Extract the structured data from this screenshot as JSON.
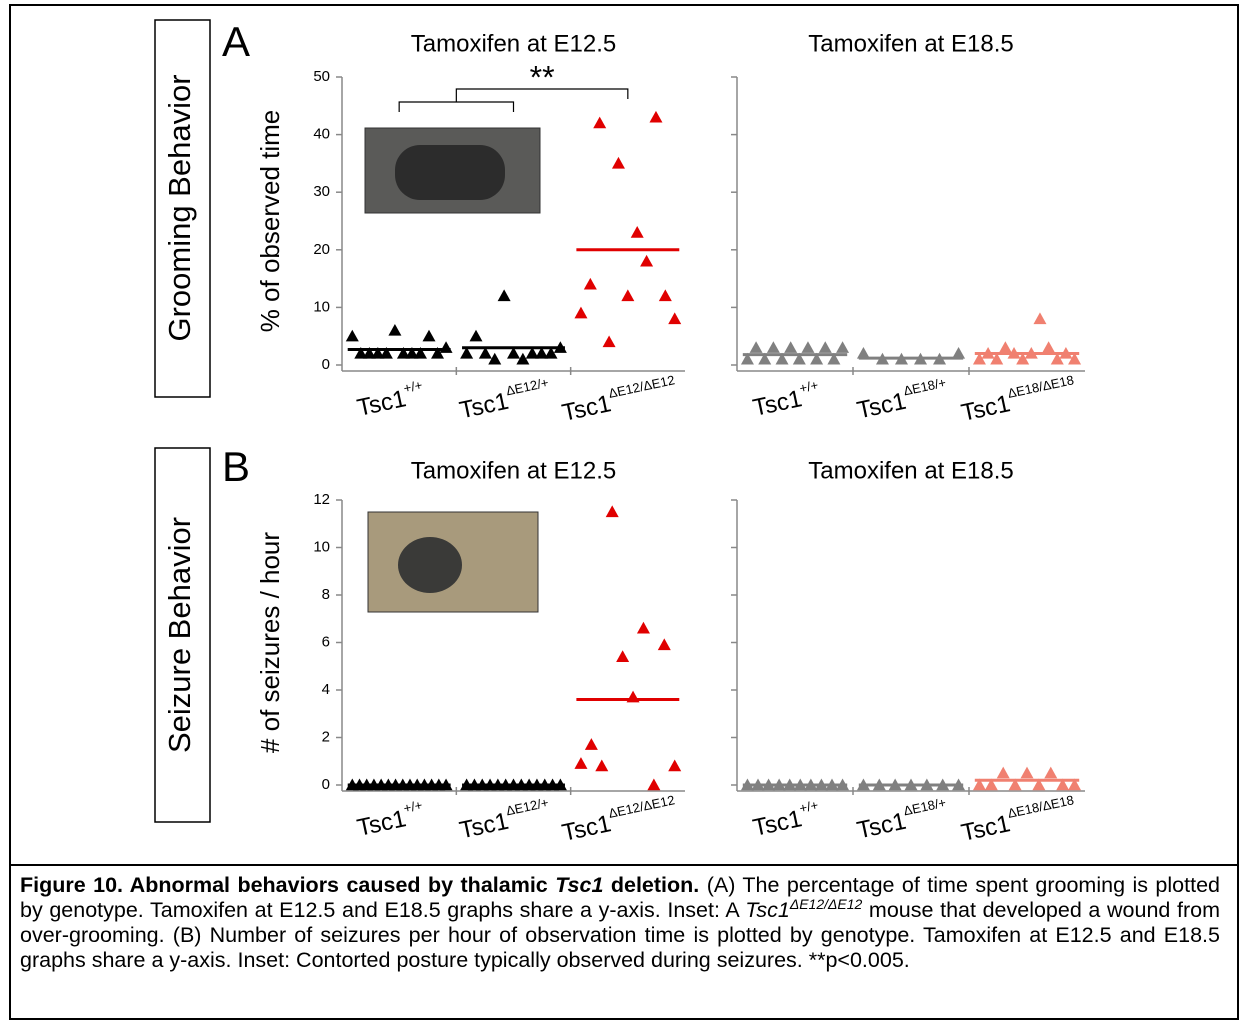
{
  "figure": {
    "panel_labels": [
      "A",
      "B"
    ],
    "row_labels": [
      "Grooming Behavior",
      "Seizure Behavior"
    ],
    "caption": [
      {
        "text": "Figure 10. Abnormal behaviors caused by thalamic ",
        "style": "b"
      },
      {
        "text": "Tsc1",
        "style": "bi"
      },
      {
        "text": " deletion.",
        "style": "b"
      },
      {
        "text": " (A) The percentage of time spent grooming is plotted by genotype. Tamoxifen at E12.5 and E18.5 graphs share a y-axis. Inset: A ",
        "style": "n"
      },
      {
        "text": "Tsc1",
        "style": "i"
      },
      {
        "text": "ΔE12/ΔE12",
        "style": "isup"
      },
      {
        "text": " mouse that developed a wound from over-grooming. (B) Number of seizures per hour of observation time is plotted by genotype. Tamoxifen at E12.5 and E18.5 graphs share a y-axis. Inset: Contorted posture typically observed during seizures. **p<0.005.",
        "style": "n"
      }
    ]
  },
  "chart_data": [
    {
      "type": "dot",
      "title": "Tamoxifen at E12.5",
      "ylabel": "% of observed time",
      "categories": [
        "Tsc1",
        "Tsc1",
        "Tsc1"
      ],
      "category_superscripts": [
        "+/+",
        "ΔE12/+",
        "ΔE12/ΔE12"
      ],
      "ylim": [
        0,
        50
      ],
      "yticks": [
        0,
        10,
        20,
        30,
        40,
        50
      ],
      "ytick_labels": true,
      "significance_label": "**",
      "groups": [
        {
          "color": "#000000",
          "values": [
            5,
            2,
            2,
            2,
            2,
            6,
            2,
            2,
            2,
            5,
            2,
            3
          ],
          "mean": 2.7
        },
        {
          "color": "#000000",
          "values": [
            2,
            5,
            2,
            1,
            12,
            2,
            1,
            2,
            2,
            2,
            3
          ],
          "mean": 3
        },
        {
          "color": "#e00000",
          "values": [
            9,
            14,
            42,
            4,
            35,
            12,
            23,
            18,
            43,
            12,
            8
          ],
          "mean": 20
        }
      ]
    },
    {
      "type": "dot",
      "title": "Tamoxifen at E18.5",
      "categories": [
        "Tsc1",
        "Tsc1",
        "Tsc1"
      ],
      "category_superscripts": [
        "+/+",
        "ΔE18/+",
        "ΔE18/ΔE18"
      ],
      "ylim": [
        0,
        50
      ],
      "yticks": [
        0,
        10,
        20,
        30,
        40,
        50
      ],
      "ytick_labels": false,
      "groups": [
        {
          "color": "#808080",
          "values": [
            1,
            3,
            1,
            3,
            1,
            3,
            1,
            3,
            1,
            3,
            1,
            3
          ],
          "mean": 1.8
        },
        {
          "color": "#808080",
          "values": [
            2,
            1,
            1,
            1,
            1,
            2
          ],
          "mean": 1.2
        },
        {
          "color": "#f08070",
          "values": [
            1,
            2,
            1,
            3,
            2,
            1,
            2,
            8,
            3,
            1,
            2,
            1
          ],
          "mean": 2
        }
      ]
    },
    {
      "type": "dot",
      "title": "Tamoxifen at E12.5",
      "ylabel": "# of seizures / hour",
      "categories": [
        "Tsc1",
        "Tsc1",
        "Tsc1"
      ],
      "category_superscripts": [
        "+/+",
        "ΔE12/+",
        "ΔE12/ΔE12"
      ],
      "ylim": [
        0,
        12
      ],
      "yticks": [
        0,
        2,
        4,
        6,
        8,
        10,
        12
      ],
      "ytick_labels": true,
      "groups": [
        {
          "color": "#000000",
          "values": [
            0,
            0,
            0,
            0,
            0,
            0,
            0,
            0,
            0,
            0,
            0,
            0,
            0,
            0
          ],
          "mean": 0
        },
        {
          "color": "#000000",
          "values": [
            0,
            0,
            0,
            0,
            0,
            0,
            0,
            0,
            0,
            0,
            0,
            0,
            0
          ],
          "mean": 0
        },
        {
          "color": "#e00000",
          "values": [
            0.9,
            1.7,
            0.8,
            11.5,
            5.4,
            3.7,
            6.6,
            0,
            5.9,
            0.8
          ],
          "mean": 3.6
        }
      ]
    },
    {
      "type": "dot",
      "title": "Tamoxifen at E18.5",
      "categories": [
        "Tsc1",
        "Tsc1",
        "Tsc1"
      ],
      "category_superscripts": [
        "+/+",
        "ΔE18/+",
        "ΔE18/ΔE18"
      ],
      "ylim": [
        0,
        12
      ],
      "yticks": [
        0,
        2,
        4,
        6,
        8,
        10,
        12
      ],
      "ytick_labels": false,
      "groups": [
        {
          "color": "#808080",
          "values": [
            0,
            0,
            0,
            0,
            0,
            0,
            0,
            0,
            0,
            0
          ],
          "mean": 0
        },
        {
          "color": "#808080",
          "values": [
            0,
            0,
            0,
            0,
            0,
            0,
            0
          ],
          "mean": 0
        },
        {
          "color": "#f08070",
          "values": [
            0,
            0,
            0.5,
            0,
            0.5,
            0,
            0.5,
            0,
            0
          ],
          "mean": 0.2
        }
      ]
    }
  ]
}
